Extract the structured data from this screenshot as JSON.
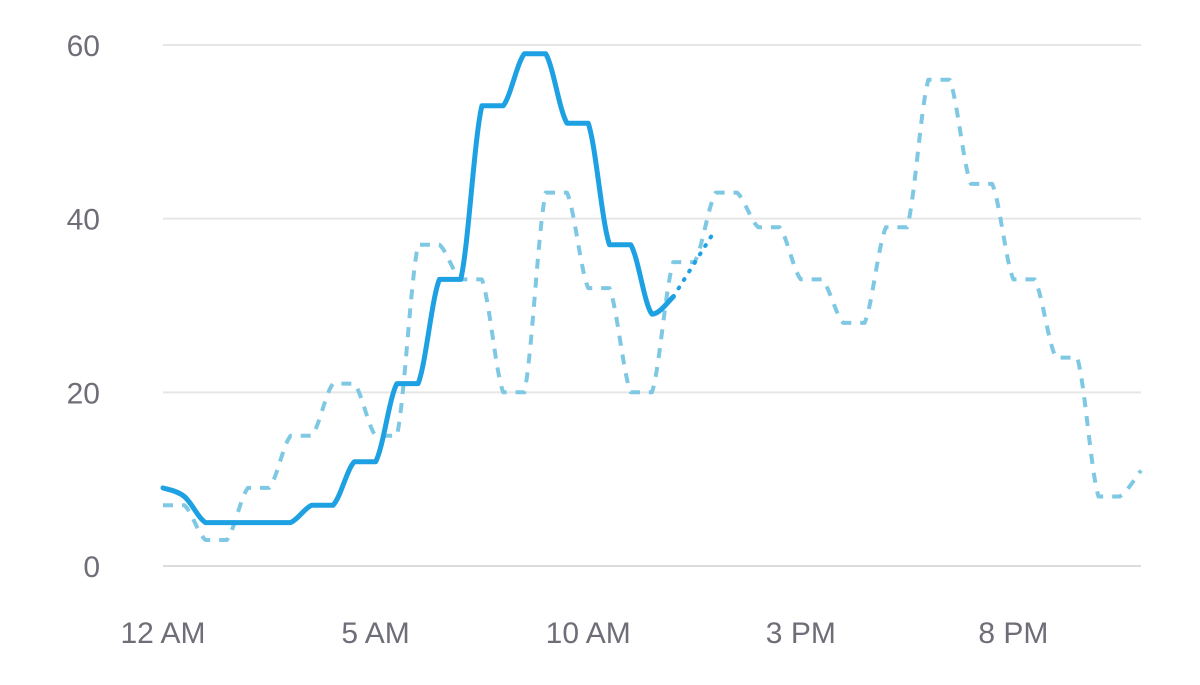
{
  "chart_data": {
    "type": "line",
    "title": "",
    "xlabel": "",
    "ylabel": "",
    "x_ticks": [
      {
        "hour": 0,
        "label": "12 AM"
      },
      {
        "hour": 5,
        "label": "5 AM"
      },
      {
        "hour": 10,
        "label": "10 AM"
      },
      {
        "hour": 15,
        "label": "3 PM"
      },
      {
        "hour": 20,
        "label": "8 PM"
      }
    ],
    "y_ticks": [
      0,
      20,
      40,
      60
    ],
    "xlim": [
      0,
      23
    ],
    "ylim": [
      0,
      60
    ],
    "grid": "horizontal",
    "legend": "none",
    "series": [
      {
        "style": "solid",
        "color": "#1da1e2",
        "x": [
          0,
          0.5,
          1,
          1.5,
          2,
          2.5,
          3,
          3.5,
          4,
          4.5,
          5,
          5.5,
          6,
          6.5,
          7,
          7.5,
          8,
          8.5,
          9,
          9.5,
          10,
          10.5,
          11,
          11.5,
          12
        ],
        "values": [
          9,
          8,
          5,
          5,
          5,
          5,
          5,
          7,
          7,
          12,
          12,
          21,
          21,
          33,
          33,
          53,
          53,
          59,
          59,
          51,
          51,
          37,
          37,
          29,
          31
        ],
        "projection": {
          "style": "dotted",
          "x": [
            12,
            12.9
          ],
          "values": [
            31,
            38
          ]
        }
      },
      {
        "style": "dashed",
        "color": "#7ec8e3",
        "x": [
          0,
          0.5,
          1,
          1.5,
          2,
          2.5,
          3,
          3.5,
          4,
          4.5,
          5,
          5.5,
          6,
          6.5,
          7,
          7.5,
          8,
          8.5,
          9,
          9.5,
          10,
          10.5,
          11,
          11.5,
          12,
          12.5,
          13,
          13.5,
          14,
          14.5,
          15,
          15.5,
          16,
          16.5,
          17,
          17.5,
          18,
          18.5,
          19,
          19.5,
          20,
          20.5,
          21,
          21.5,
          22,
          22.5,
          23
        ],
        "values": [
          7,
          7,
          3,
          3,
          9,
          9,
          15,
          15,
          21,
          21,
          15,
          15,
          37,
          37,
          33,
          33,
          20,
          20,
          43,
          43,
          32,
          32,
          20,
          20,
          35,
          35,
          43,
          43,
          39,
          39,
          33,
          33,
          28,
          28,
          39,
          39,
          56,
          56,
          44,
          44,
          33,
          33,
          24,
          24,
          8,
          8,
          11
        ]
      }
    ]
  }
}
